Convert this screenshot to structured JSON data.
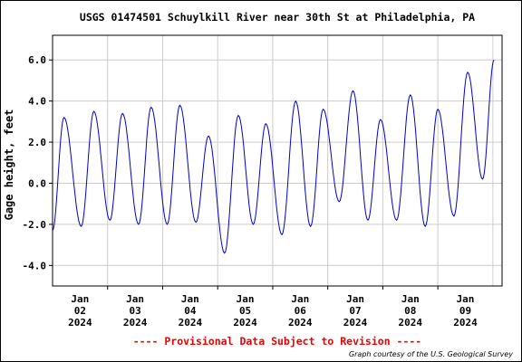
{
  "chart_data": {
    "type": "line",
    "title": "USGS 01474501 Schuylkill River near 30th St at Philadelphia, PA",
    "ylabel": "Gage height, feet",
    "xlabel": "",
    "ylim": [
      -5.0,
      7.2
    ],
    "yticks": [
      -4.0,
      -2.0,
      0.0,
      2.0,
      4.0,
      6.0
    ],
    "ytick_labels": [
      "-4.0",
      "-2.0",
      "0.0",
      "2.0",
      "4.0",
      "6.0"
    ],
    "xlim_hours": [
      0,
      196
    ],
    "x_ticks": [
      {
        "month": "Jan",
        "day": "02",
        "year": "2024"
      },
      {
        "month": "Jan",
        "day": "03",
        "year": "2024"
      },
      {
        "month": "Jan",
        "day": "04",
        "year": "2024"
      },
      {
        "month": "Jan",
        "day": "05",
        "year": "2024"
      },
      {
        "month": "Jan",
        "day": "06",
        "year": "2024"
      },
      {
        "month": "Jan",
        "day": "07",
        "year": "2024"
      },
      {
        "month": "Jan",
        "day": "08",
        "year": "2024"
      },
      {
        "month": "Jan",
        "day": "09",
        "year": "2024"
      }
    ],
    "grid": true,
    "line_color": "#0000cc",
    "series": [
      {
        "extrema": [
          {
            "t": "Jan 01 00:00",
            "y": -2.3
          },
          {
            "t": "Jan 01 05:00",
            "y": 3.2
          },
          {
            "t": "Jan 01 12:30",
            "y": -2.1
          },
          {
            "t": "Jan 01 18:00",
            "y": 3.5
          },
          {
            "t": "Jan 02 01:00",
            "y": -1.8
          },
          {
            "t": "Jan 02 06:30",
            "y": 3.4
          },
          {
            "t": "Jan 02 13:30",
            "y": -2.0
          },
          {
            "t": "Jan 02 19:00",
            "y": 3.7
          },
          {
            "t": "Jan 03 02:00",
            "y": -2.0
          },
          {
            "t": "Jan 03 07:30",
            "y": 3.8
          },
          {
            "t": "Jan 03 14:30",
            "y": -1.9
          },
          {
            "t": "Jan 03 20:00",
            "y": 2.3
          },
          {
            "t": "Jan 04 03:00",
            "y": -3.4
          },
          {
            "t": "Jan 04 09:00",
            "y": 3.3
          },
          {
            "t": "Jan 04 15:30",
            "y": -2.0
          },
          {
            "t": "Jan 04 21:00",
            "y": 2.9
          },
          {
            "t": "Jan 05 04:00",
            "y": -2.5
          },
          {
            "t": "Jan 05 10:00",
            "y": 4.0
          },
          {
            "t": "Jan 05 16:30",
            "y": -2.1
          },
          {
            "t": "Jan 05 22:00",
            "y": 3.6
          },
          {
            "t": "Jan 06 05:00",
            "y": -0.9
          },
          {
            "t": "Jan 06 11:00",
            "y": 4.5
          },
          {
            "t": "Jan 06 17:30",
            "y": -1.8
          },
          {
            "t": "Jan 06 23:00",
            "y": 3.1
          },
          {
            "t": "Jan 07 06:00",
            "y": -1.8
          },
          {
            "t": "Jan 07 12:00",
            "y": 4.3
          },
          {
            "t": "Jan 07 18:30",
            "y": -2.1
          },
          {
            "t": "Jan 08 00:00",
            "y": 3.6
          },
          {
            "t": "Jan 08 07:00",
            "y": -1.6
          },
          {
            "t": "Jan 08 13:00",
            "y": 5.4
          },
          {
            "t": "Jan 08 19:30",
            "y": 0.2
          },
          {
            "t": "Jan 09 00:30",
            "y": 6.0
          }
        ]
      }
    ]
  },
  "footer": {
    "provisional": "---- Provisional Data Subject to Revision ----",
    "credit": "Graph courtesy of the U.S. Geological Survey"
  },
  "colors": {
    "line": "#0000cc",
    "grid": "#cccccc",
    "provisional": "#ee0000"
  }
}
